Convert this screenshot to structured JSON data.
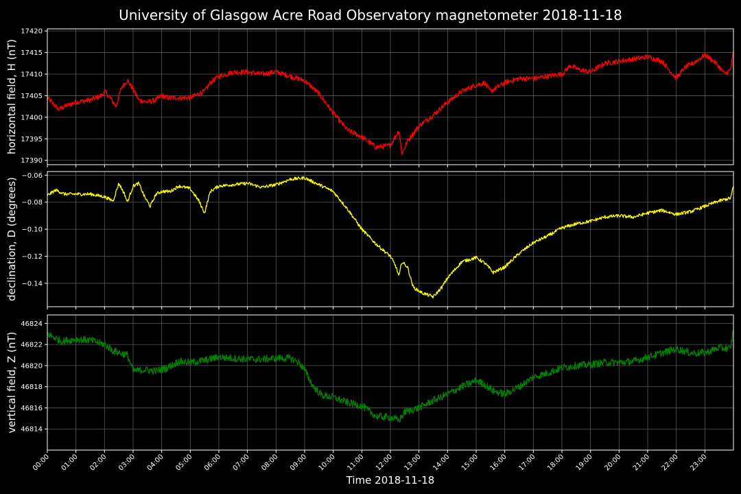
{
  "chart_data": {
    "type": "line",
    "title": "University of Glasgow Acre Road Observatory magnetometer 2018-11-18",
    "xlabel": "Time 2018-11-18",
    "x_range_hours": [
      0,
      24
    ],
    "x_tick_labels": [
      "00:00",
      "01:00",
      "02:00",
      "03:00",
      "04:00",
      "05:00",
      "06:00",
      "07:00",
      "08:00",
      "09:00",
      "10:00",
      "11:00",
      "12:00",
      "13:00",
      "14:00",
      "15:00",
      "16:00",
      "17:00",
      "18:00",
      "19:00",
      "20:00",
      "21:00",
      "22:00",
      "23:00"
    ],
    "grid": true,
    "panels": [
      {
        "id": "h",
        "ylabel": "horizontal field, H (nT)",
        "color": "#ff0000",
        "ylim": [
          17389,
          17420.5
        ],
        "yticks": [
          17390,
          17395,
          17400,
          17405,
          17410,
          17415,
          17420
        ],
        "ytick_labels": [
          "17390",
          "17395",
          "17400",
          "17405",
          "17410",
          "17415",
          "17420"
        ],
        "noise": 0.6,
        "points": [
          [
            0,
            17404.5
          ],
          [
            0.4,
            17401.8
          ],
          [
            0.6,
            17402.5
          ],
          [
            1.0,
            17403.5
          ],
          [
            1.5,
            17404
          ],
          [
            1.9,
            17405
          ],
          [
            2.0,
            17406
          ],
          [
            2.2,
            17404.5
          ],
          [
            2.4,
            17402.5
          ],
          [
            2.6,
            17407
          ],
          [
            2.8,
            17408.5
          ],
          [
            3.0,
            17406.5
          ],
          [
            3.2,
            17404
          ],
          [
            3.5,
            17403.5
          ],
          [
            3.8,
            17404
          ],
          [
            4.0,
            17405
          ],
          [
            4.2,
            17404.5
          ],
          [
            4.5,
            17404.5
          ],
          [
            5.0,
            17404.5
          ],
          [
            5.3,
            17405.5
          ],
          [
            5.5,
            17406
          ],
          [
            5.7,
            17408
          ],
          [
            6.0,
            17409.5
          ],
          [
            6.5,
            17410.5
          ],
          [
            7.0,
            17410.5
          ],
          [
            7.5,
            17410
          ],
          [
            8.0,
            17410.5
          ],
          [
            8.5,
            17409.5
          ],
          [
            9.0,
            17408.5
          ],
          [
            9.5,
            17405.5
          ],
          [
            10.0,
            17401
          ],
          [
            10.5,
            17397
          ],
          [
            11.0,
            17395.5
          ],
          [
            11.5,
            17393
          ],
          [
            12.0,
            17393.5
          ],
          [
            12.3,
            17397
          ],
          [
            12.4,
            17391.5
          ],
          [
            12.6,
            17394.5
          ],
          [
            13.0,
            17398
          ],
          [
            13.5,
            17400.5
          ],
          [
            14.0,
            17403.5
          ],
          [
            14.5,
            17406
          ],
          [
            15.0,
            17407.5
          ],
          [
            15.3,
            17408
          ],
          [
            15.5,
            17406
          ],
          [
            16.0,
            17408
          ],
          [
            16.5,
            17409
          ],
          [
            17.0,
            17409
          ],
          [
            17.5,
            17409.5
          ],
          [
            18.0,
            17410
          ],
          [
            18.3,
            17412
          ],
          [
            18.6,
            17411
          ],
          [
            19.0,
            17410.5
          ],
          [
            19.5,
            17412.5
          ],
          [
            20.0,
            17413
          ],
          [
            20.5,
            17413.5
          ],
          [
            21.0,
            17414
          ],
          [
            21.5,
            17413
          ],
          [
            22.0,
            17409
          ],
          [
            22.3,
            17411.5
          ],
          [
            22.7,
            17413
          ],
          [
            23.0,
            17414.5
          ],
          [
            23.4,
            17412.5
          ],
          [
            23.7,
            17410
          ],
          [
            23.9,
            17411
          ],
          [
            24.0,
            17415
          ]
        ]
      },
      {
        "id": "d",
        "ylabel": "declination, D (degrees)",
        "color": "#ffff00",
        "ylim": [
          -0.1573,
          -0.0573
        ],
        "yticks": [
          -0.14,
          -0.12,
          -0.1,
          -0.08,
          -0.06
        ],
        "ytick_labels": [
          "−0.14",
          "−0.12",
          "−0.10",
          "−0.08",
          "−0.06"
        ],
        "noise": 0.0012,
        "points": [
          [
            0,
            -0.075
          ],
          [
            0.3,
            -0.071
          ],
          [
            0.6,
            -0.074
          ],
          [
            1.0,
            -0.074
          ],
          [
            1.5,
            -0.074
          ],
          [
            2.0,
            -0.076
          ],
          [
            2.3,
            -0.079
          ],
          [
            2.5,
            -0.066
          ],
          [
            2.7,
            -0.074
          ],
          [
            2.8,
            -0.08
          ],
          [
            3.0,
            -0.068
          ],
          [
            3.2,
            -0.066
          ],
          [
            3.4,
            -0.076
          ],
          [
            3.6,
            -0.083
          ],
          [
            3.8,
            -0.074
          ],
          [
            4.0,
            -0.072
          ],
          [
            4.3,
            -0.072
          ],
          [
            4.6,
            -0.068
          ],
          [
            5.0,
            -0.07
          ],
          [
            5.3,
            -0.079
          ],
          [
            5.5,
            -0.088
          ],
          [
            5.7,
            -0.072
          ],
          [
            6.0,
            -0.068
          ],
          [
            6.5,
            -0.067
          ],
          [
            7.0,
            -0.066
          ],
          [
            7.5,
            -0.069
          ],
          [
            8.0,
            -0.067
          ],
          [
            8.5,
            -0.063
          ],
          [
            9.0,
            -0.062
          ],
          [
            9.5,
            -0.067
          ],
          [
            10.0,
            -0.072
          ],
          [
            10.5,
            -0.085
          ],
          [
            11.0,
            -0.1
          ],
          [
            11.5,
            -0.111
          ],
          [
            12.0,
            -0.12
          ],
          [
            12.2,
            -0.128
          ],
          [
            12.3,
            -0.135
          ],
          [
            12.4,
            -0.124
          ],
          [
            12.6,
            -0.128
          ],
          [
            12.8,
            -0.143
          ],
          [
            13.1,
            -0.147
          ],
          [
            13.5,
            -0.15
          ],
          [
            13.8,
            -0.143
          ],
          [
            14.0,
            -0.136
          ],
          [
            14.5,
            -0.124
          ],
          [
            15.0,
            -0.121
          ],
          [
            15.3,
            -0.125
          ],
          [
            15.6,
            -0.132
          ],
          [
            16.0,
            -0.128
          ],
          [
            16.5,
            -0.118
          ],
          [
            17.0,
            -0.11
          ],
          [
            17.5,
            -0.105
          ],
          [
            18.0,
            -0.099
          ],
          [
            18.5,
            -0.096
          ],
          [
            19.0,
            -0.094
          ],
          [
            19.5,
            -0.091
          ],
          [
            20.0,
            -0.09
          ],
          [
            20.5,
            -0.091
          ],
          [
            21.0,
            -0.088
          ],
          [
            21.5,
            -0.086
          ],
          [
            22.0,
            -0.089
          ],
          [
            22.5,
            -0.087
          ],
          [
            23.0,
            -0.083
          ],
          [
            23.5,
            -0.079
          ],
          [
            23.9,
            -0.077
          ],
          [
            24.0,
            -0.068
          ]
        ]
      },
      {
        "id": "z",
        "ylabel": "vertical field, Z (nT)",
        "color": "#008000",
        "ylim": [
          46812,
          46824.8
        ],
        "yticks": [
          46814,
          46816,
          46818,
          46820,
          46822,
          46824
        ],
        "ytick_labels": [
          "46814",
          "46816",
          "46818",
          "46820",
          "46822",
          "46824"
        ],
        "noise": 0.35,
        "points": [
          [
            0,
            46823
          ],
          [
            0.5,
            46822.3
          ],
          [
            1.0,
            46822.5
          ],
          [
            1.5,
            46822.4
          ],
          [
            2.0,
            46822
          ],
          [
            2.3,
            46821.4
          ],
          [
            2.8,
            46821
          ],
          [
            3.0,
            46819.5
          ],
          [
            3.4,
            46819.6
          ],
          [
            3.8,
            46819.5
          ],
          [
            4.2,
            46819.8
          ],
          [
            4.6,
            46820.4
          ],
          [
            5.0,
            46820.3
          ],
          [
            5.5,
            46820.5
          ],
          [
            6.0,
            46820.8
          ],
          [
            6.5,
            46820.7
          ],
          [
            7.0,
            46820.6
          ],
          [
            7.5,
            46820.6
          ],
          [
            8.0,
            46820.7
          ],
          [
            8.5,
            46820.7
          ],
          [
            8.8,
            46820.3
          ],
          [
            9.0,
            46819.6
          ],
          [
            9.3,
            46818
          ],
          [
            9.6,
            46817.2
          ],
          [
            10.0,
            46817
          ],
          [
            10.5,
            46816.5
          ],
          [
            11.0,
            46816.2
          ],
          [
            11.5,
            46815.2
          ],
          [
            12.0,
            46815.1
          ],
          [
            12.3,
            46814.8
          ],
          [
            12.5,
            46815.6
          ],
          [
            13.0,
            46816
          ],
          [
            13.5,
            46816.7
          ],
          [
            14.0,
            46817.3
          ],
          [
            14.5,
            46818
          ],
          [
            15.0,
            46818.6
          ],
          [
            15.3,
            46818.2
          ],
          [
            15.6,
            46817.6
          ],
          [
            16.0,
            46817.3
          ],
          [
            16.5,
            46818
          ],
          [
            17.0,
            46818.9
          ],
          [
            17.5,
            46819.3
          ],
          [
            18.0,
            46819.8
          ],
          [
            18.5,
            46820
          ],
          [
            19.0,
            46820.1
          ],
          [
            19.5,
            46820.3
          ],
          [
            20.0,
            46820.3
          ],
          [
            20.5,
            46820.4
          ],
          [
            21.0,
            46820.8
          ],
          [
            21.5,
            46821.2
          ],
          [
            22.0,
            46821.6
          ],
          [
            22.5,
            46821.2
          ],
          [
            23.0,
            46821.2
          ],
          [
            23.5,
            46821.7
          ],
          [
            23.9,
            46821.6
          ],
          [
            24.0,
            46823.5
          ]
        ]
      }
    ]
  }
}
